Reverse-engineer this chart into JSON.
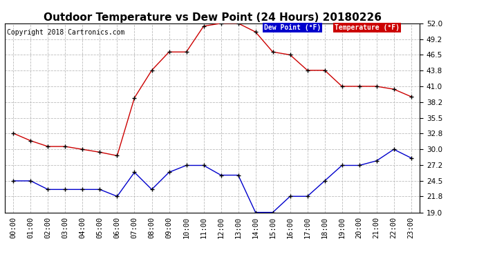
{
  "title": "Outdoor Temperature vs Dew Point (24 Hours) 20180226",
  "copyright": "Copyright 2018 Cartronics.com",
  "hours": [
    "00:00",
    "01:00",
    "02:00",
    "03:00",
    "04:00",
    "05:00",
    "06:00",
    "07:00",
    "08:00",
    "09:00",
    "10:00",
    "11:00",
    "12:00",
    "13:00",
    "14:00",
    "15:00",
    "16:00",
    "17:00",
    "18:00",
    "19:00",
    "20:00",
    "21:00",
    "22:00",
    "23:00"
  ],
  "temperature": [
    32.8,
    31.5,
    30.5,
    30.5,
    30.0,
    29.5,
    28.9,
    39.0,
    43.8,
    47.0,
    47.0,
    51.5,
    52.0,
    52.0,
    50.5,
    47.0,
    46.5,
    43.8,
    43.8,
    41.0,
    41.0,
    41.0,
    40.5,
    39.2
  ],
  "dew_point": [
    24.5,
    24.5,
    23.0,
    23.0,
    23.0,
    23.0,
    21.8,
    26.0,
    23.0,
    26.0,
    27.2,
    27.2,
    25.5,
    25.5,
    19.0,
    19.0,
    21.8,
    21.8,
    24.5,
    27.2,
    27.2,
    28.0,
    30.0,
    28.5
  ],
  "temp_color": "#cc0000",
  "dew_color": "#0000cc",
  "marker_color": "#000000",
  "ylim_min": 19.0,
  "ylim_max": 52.0,
  "yticks": [
    19.0,
    21.8,
    24.5,
    27.2,
    30.0,
    32.8,
    35.5,
    38.2,
    41.0,
    43.8,
    46.5,
    49.2,
    52.0
  ],
  "bg_color": "#ffffff",
  "grid_color": "#bbbbbb",
  "title_fontsize": 11,
  "copyright_fontsize": 7,
  "tick_fontsize": 7.5,
  "legend_dew_bg": "#0000cc",
  "legend_temp_bg": "#cc0000",
  "legend_text_color": "#ffffff"
}
